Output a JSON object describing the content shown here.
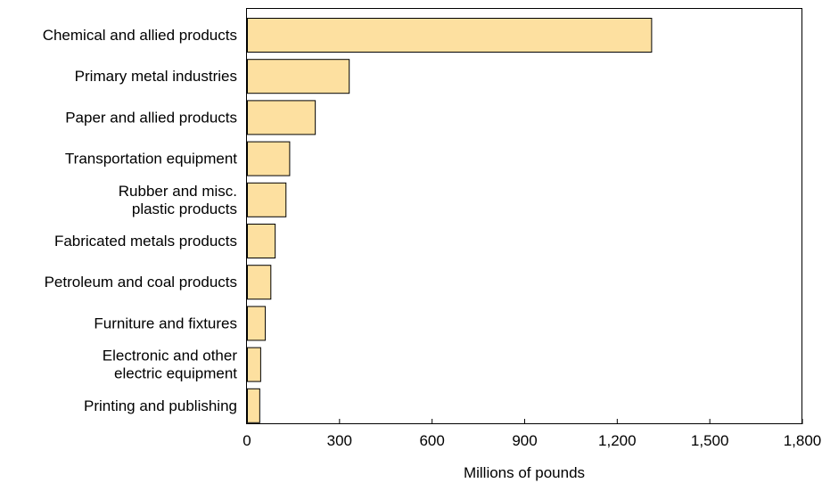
{
  "chart_data": {
    "type": "bar",
    "orientation": "horizontal",
    "categories": [
      [
        "Chemical and allied products"
      ],
      [
        "Primary metal industries"
      ],
      [
        "Paper and allied products"
      ],
      [
        "Transportation equipment"
      ],
      [
        "Rubber and misc.",
        "plastic products"
      ],
      [
        "Fabricated metals products"
      ],
      [
        "Petroleum and coal products"
      ],
      [
        "Furniture and fixtures"
      ],
      [
        "Electronic and other",
        "electric equipment"
      ],
      [
        "Printing and publishing"
      ]
    ],
    "values": [
      1310,
      330,
      220,
      137,
      125,
      90,
      76,
      58,
      43,
      40
    ],
    "xlabel": "Millions of pounds",
    "xlim": [
      0,
      1800
    ],
    "xticks": [
      0,
      300,
      600,
      900,
      1200,
      1500,
      1800
    ],
    "xtick_labels": [
      "0",
      "300",
      "600",
      "900",
      "1,200",
      "1,500",
      "1,800"
    ],
    "grid": false,
    "colors": {
      "bar_fill": "#fde0a0",
      "bar_stroke": "#000000",
      "axis": "#000000"
    }
  }
}
